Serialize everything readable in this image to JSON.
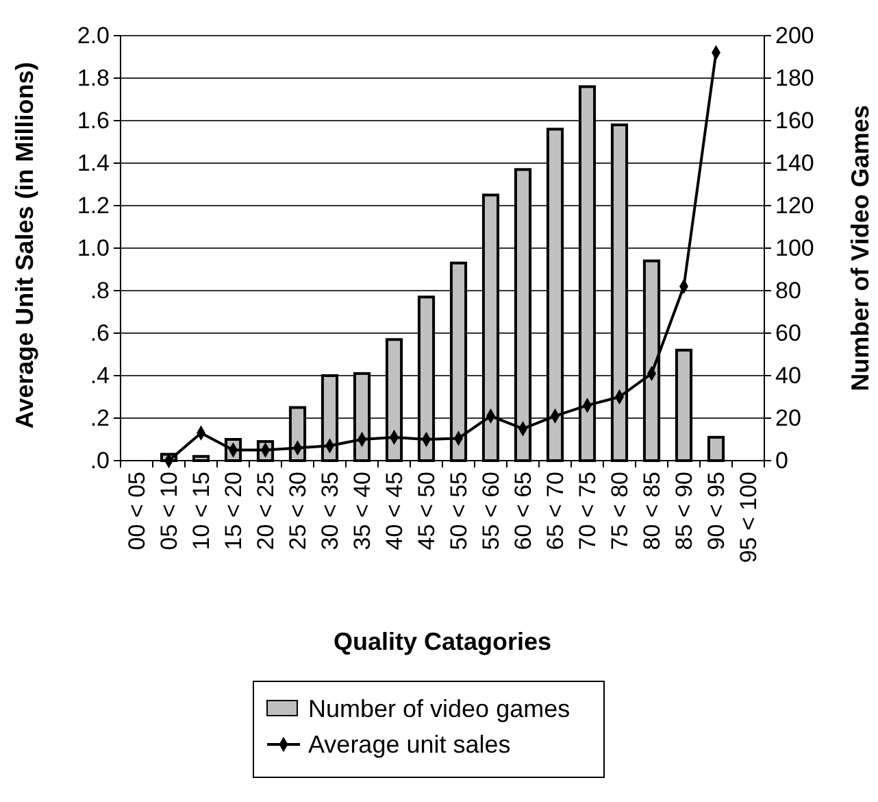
{
  "chart_data": {
    "type": "bar",
    "xlabel": "Quality Catagories",
    "ylabel": "Average Unit Sales (in Millions)",
    "y2label": "Number of Video Games",
    "categories": [
      "00 < 05",
      "05 < 10",
      "10 < 15",
      "15 < 20",
      "20 < 25",
      "25 < 30",
      "30 < 35",
      "35 < 40",
      "40 < 45",
      "45 < 50",
      "50 < 55",
      "55 < 60",
      "60 < 65",
      "65 < 70",
      "70 < 75",
      "75 < 80",
      "80 < 85",
      "85 < 90",
      "90 < 95",
      "95 < 100"
    ],
    "series": [
      {
        "name": "Number of video games",
        "axis": "y2",
        "color": "#c0c0c0",
        "values": [
          null,
          3,
          2,
          10,
          9,
          25,
          40,
          41,
          57,
          77,
          93,
          125,
          137,
          156,
          176,
          158,
          94,
          52,
          11,
          null
        ]
      },
      {
        "name": "Average unit sales",
        "type": "line",
        "color": "#000000",
        "marker": "diamond",
        "values": [
          null,
          0.0,
          0.13,
          0.05,
          0.05,
          0.06,
          0.07,
          0.1,
          0.11,
          0.1,
          0.105,
          0.21,
          0.15,
          0.21,
          0.26,
          0.3,
          0.41,
          0.82,
          1.92,
          null
        ]
      }
    ],
    "ylim": [
      0,
      2.0
    ],
    "yticks": [
      {
        "value": 0,
        "label": ".0"
      },
      {
        "value": 0.2,
        "label": ".2"
      },
      {
        "value": 0.4,
        "label": ".4"
      },
      {
        "value": 0.6,
        "label": ".6"
      },
      {
        "value": 0.8,
        "label": ".8"
      },
      {
        "value": 1.0,
        "label": "1.0"
      },
      {
        "value": 1.2,
        "label": "1.2"
      },
      {
        "value": 1.4,
        "label": "1.4"
      },
      {
        "value": 1.6,
        "label": "1.6"
      },
      {
        "value": 1.8,
        "label": "1.8"
      },
      {
        "value": 2.0,
        "label": "2.0"
      }
    ],
    "y2lim": [
      0,
      200
    ],
    "y2ticks": [
      0,
      20,
      40,
      60,
      80,
      100,
      120,
      140,
      160,
      180,
      200
    ],
    "grid": "y",
    "legend": "bottom"
  }
}
